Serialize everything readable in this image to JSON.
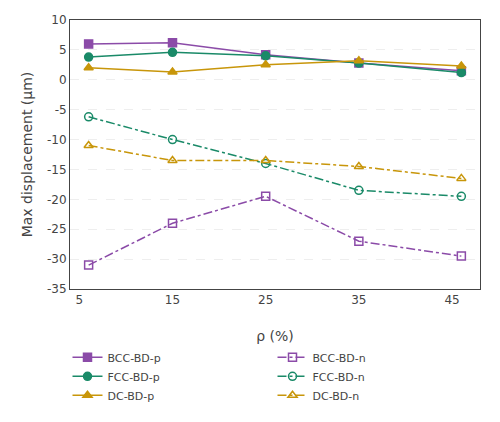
{
  "chart_data": {
    "type": "line",
    "x": [
      6,
      15,
      25,
      35,
      46
    ],
    "series": [
      {
        "name": "BCC-BD-p",
        "color": "#8B4BA8",
        "marker": "square",
        "line_style": "solid",
        "values": [
          6.0,
          6.2,
          4.2,
          2.8,
          1.5
        ]
      },
      {
        "name": "BCC-BD-n",
        "color": "#8B4BA8",
        "marker": "square-open",
        "line_style": "dashdot",
        "values": [
          -31.0,
          -24.0,
          -19.5,
          -27.0,
          -29.5
        ]
      },
      {
        "name": "FCC-BD-p",
        "color": "#1A8A68",
        "marker": "circle",
        "line_style": "solid",
        "values": [
          3.8,
          4.6,
          4.0,
          2.8,
          1.2
        ]
      },
      {
        "name": "FCC-BD-n",
        "color": "#1A8A68",
        "marker": "circle-open",
        "line_style": "dashdot",
        "values": [
          -6.2,
          -10.0,
          -14.0,
          -18.5,
          -19.5
        ]
      },
      {
        "name": "DC-BD-p",
        "color": "#C8960A",
        "marker": "triangle-up",
        "line_style": "solid",
        "values": [
          2.0,
          1.3,
          2.5,
          3.2,
          2.3
        ]
      },
      {
        "name": "DC-BD-n",
        "color": "#C8960A",
        "marker": "triangle-up-open",
        "line_style": "dashdot",
        "values": [
          -11.0,
          -13.5,
          -13.5,
          -14.5,
          -16.5
        ]
      }
    ],
    "xlim": [
      4,
      48
    ],
    "ylim": [
      -35,
      10
    ],
    "xticks": [
      5,
      15,
      25,
      35,
      45
    ],
    "yticks": [
      -35,
      -30,
      -25,
      -20,
      -15,
      -10,
      -5,
      0,
      5,
      10
    ],
    "xlabel": "ρ (%)",
    "ylabel": "Max displacement (μm)",
    "grid": "y",
    "legend": "bottom"
  }
}
